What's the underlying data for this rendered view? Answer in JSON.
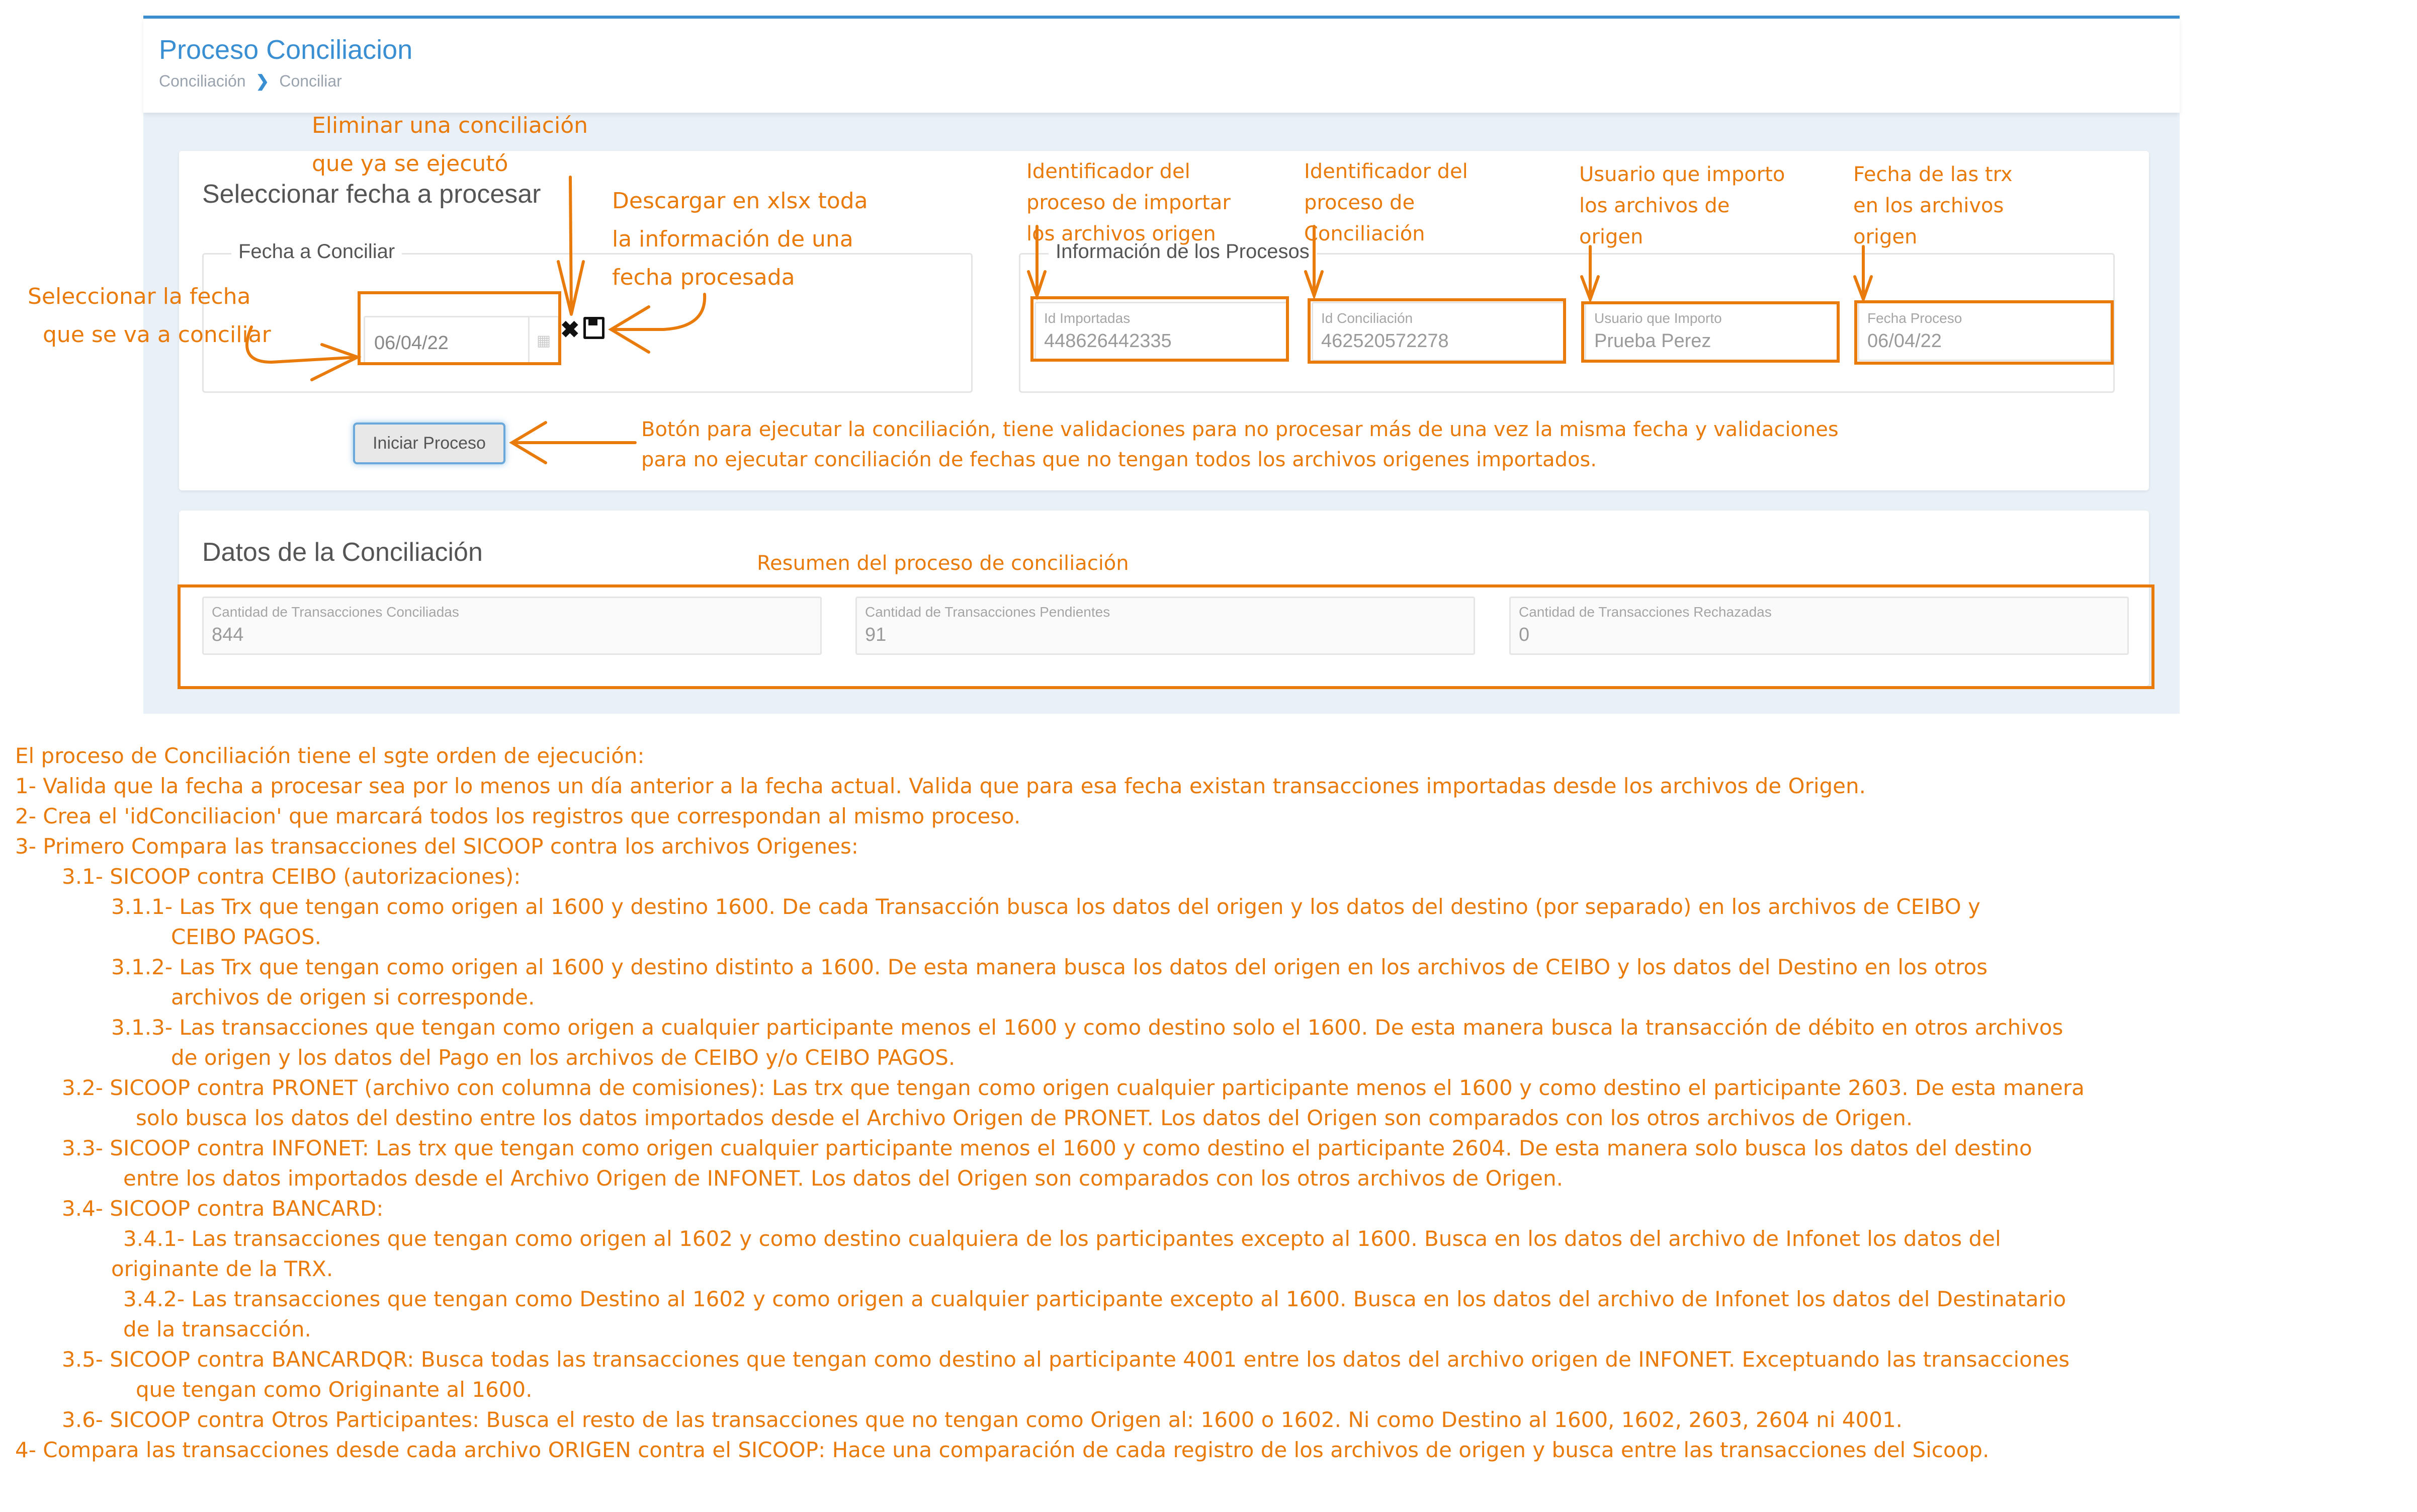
{
  "header": {
    "title": "Proceso Conciliacion",
    "breadcrumb": [
      "Conciliación",
      "Conciliar"
    ]
  },
  "select_panel": {
    "title": "Seleccionar fecha a procesar",
    "fecha_fieldset": {
      "legend": "Fecha a Conciliar",
      "date_value": "06/04/22",
      "calendar_icon": "calendar-icon",
      "delete_icon": "x-icon",
      "download_icon": "floppy-disk-icon"
    },
    "info_fieldset": {
      "legend": "Información de los Procesos",
      "fields": [
        {
          "label": "Id Importadas",
          "value": "448626442335"
        },
        {
          "label": "Id Conciliación",
          "value": "462520572278"
        },
        {
          "label": "Usuario que Importo",
          "value": "Prueba Perez"
        },
        {
          "label": "Fecha Proceso",
          "value": "06/04/22"
        }
      ]
    },
    "start_button": "Iniciar Proceso"
  },
  "summary_panel": {
    "title": "Datos de la Conciliación",
    "fields": [
      {
        "label": "Cantidad de Transacciones Conciliadas",
        "value": "844"
      },
      {
        "label": "Cantidad de Transacciones Pendientes",
        "value": "91"
      },
      {
        "label": "Cantidad de Transacciones Rechazadas",
        "value": "0"
      }
    ]
  },
  "annotations": {
    "eliminar": [
      "Eliminar una conciliación",
      "que ya se ejecutó"
    ],
    "descargar": [
      "Descargar en xlsx toda",
      "la información de una",
      "fecha procesada"
    ],
    "seleccionar": [
      "Seleccionar la fecha",
      "que se va a conciliar"
    ],
    "id_importadas": [
      "Identificador del",
      "proceso de importar",
      "los archivos origen"
    ],
    "id_conciliacion": [
      "Identificador del",
      "proceso de",
      "Conciliación"
    ],
    "usuario": [
      "Usuario que importo",
      "los archivos de",
      "origen"
    ],
    "fecha": [
      "Fecha de las trx",
      "en los archivos",
      "origen"
    ],
    "boton": [
      "Botón para ejecutar la conciliación, tiene validaciones para no procesar más de una vez la misma fecha y validaciones",
      "para no ejecutar conciliación de fechas que no tengan todos los archivos origenes importados."
    ],
    "resumen": "Resumen del proceso de conciliación",
    "color": "#e87b0b"
  },
  "notes": [
    "El proceso de Conciliación tiene el sgte orden de ejecución:",
    "1- Valida que la fecha a procesar sea por lo menos un día anterior a la fecha actual. Valida que para esa fecha existan transacciones importadas desde los archivos de Origen.",
    "2- Crea el 'idConciliacion' que marcará todos los registros que correspondan al mismo proceso.",
    "3- Primero Compara las transacciones del SICOOP contra los archivos Origenes:",
    "3.1- SICOOP contra CEIBO (autorizaciones):",
    "3.1.1- Las Trx que tengan como origen al 1600 y destino 1600. De cada Transacción busca los datos del origen y los datos del destino (por separado) en los archivos de CEIBO y",
    "CEIBO PAGOS.",
    "3.1.2- Las Trx que tengan como origen al 1600 y destino distinto a 1600. De esta manera busca los datos del origen en los archivos de CEIBO y los datos del Destino en los otros",
    "archivos de origen si corresponde.",
    "3.1.3- Las transacciones que tengan como origen a cualquier participante menos el 1600 y como destino solo el 1600. De esta manera busca la transacción de débito en otros archivos",
    "de origen y los datos del Pago en los archivos de CEIBO y/o CEIBO PAGOS.",
    "3.2- SICOOP contra PRONET (archivo con columna de comisiones): Las trx que tengan como origen cualquier participante menos el 1600 y como destino el participante 2603. De esta manera",
    "solo busca los datos del destino entre los datos importados desde el Archivo Origen de PRONET. Los datos del Origen son comparados con los otros archivos de Origen.",
    "3.3- SICOOP contra INFONET: Las trx que tengan como origen cualquier participante menos el 1600 y como destino el participante 2604. De esta manera solo busca los datos del destino",
    "entre los datos importados desde el Archivo Origen de INFONET. Los datos del Origen son comparados con los otros archivos de Origen.",
    "3.4- SICOOP contra BANCARD:",
    "3.4.1- Las transacciones que tengan como origen al 1602 y como destino cualquiera de los participantes excepto al 1600. Busca en los datos del archivo de Infonet los datos del",
    "originante de la TRX.",
    "3.4.2- Las transacciones que tengan como Destino al 1602 y como origen a cualquier participante excepto al 1600. Busca en los datos del archivo de Infonet los datos del Destinatario",
    "de la transacción.",
    "3.5- SICOOP contra BANCARDQR: Busca todas las transacciones que tengan como destino al participante 4001 entre los datos del archivo origen de INFONET. Exceptuando las transacciones",
    "que tengan como Originante al 1600.",
    "3.6- SICOOP contra Otros Participantes: Busca el resto de las transacciones que no tengan como Origen al: 1600 o 1602. Ni como Destino al 1600, 1602, 2603, 2604 ni 4001.",
    "4- Compara las transacciones desde cada archivo ORIGEN contra el SICOOP: Hace una comparación de cada registro de los archivos de origen y busca entre las transacciones del Sicoop."
  ]
}
